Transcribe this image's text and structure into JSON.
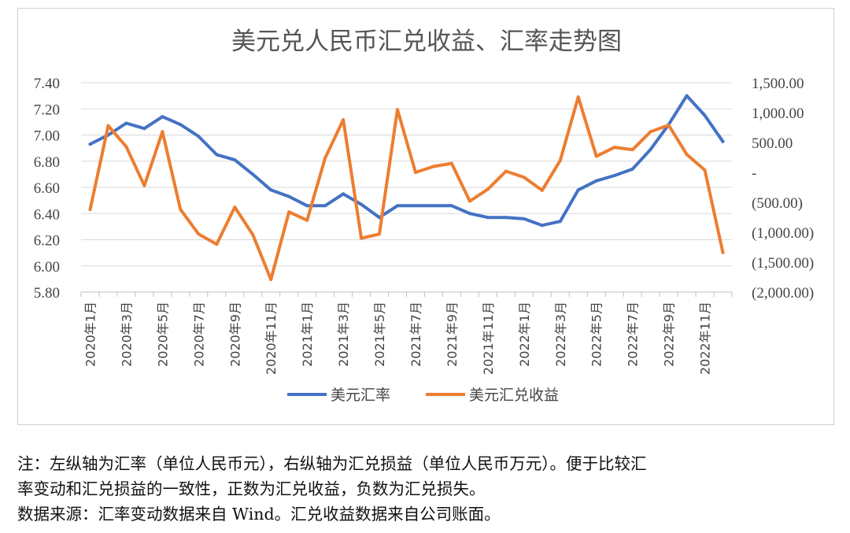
{
  "chart_data": {
    "type": "line",
    "title": "美元兑人民币汇兑收益、汇率走势图",
    "categories": [
      "2020年1月",
      "2020年2月",
      "2020年3月",
      "2020年4月",
      "2020年5月",
      "2020年6月",
      "2020年7月",
      "2020年8月",
      "2020年9月",
      "2020年10月",
      "2020年11月",
      "2020年12月",
      "2021年1月",
      "2021年2月",
      "2021年3月",
      "2021年4月",
      "2021年5月",
      "2021年6月",
      "2021年7月",
      "2021年8月",
      "2021年9月",
      "2021年10月",
      "2021年11月",
      "2021年12月",
      "2022年1月",
      "2022年2月",
      "2022年3月",
      "2022年4月",
      "2022年5月",
      "2022年6月",
      "2022年7月",
      "2022年8月",
      "2022年9月",
      "2022年10月",
      "2022年11月",
      "2022年12月"
    ],
    "x_tick_labels": [
      "2020年1月",
      "",
      "2020年3月",
      "",
      "2020年5月",
      "",
      "2020年7月",
      "",
      "2020年9月",
      "",
      "2020年11月",
      "",
      "2021年1月",
      "",
      "2021年3月",
      "",
      "2021年5月",
      "",
      "2021年7月",
      "",
      "2021年9月",
      "",
      "2021年11月",
      "",
      "2022年1月",
      "",
      "2022年3月",
      "",
      "2022年5月",
      "",
      "2022年7月",
      "",
      "2022年9月",
      "",
      "2022年11月",
      ""
    ],
    "y_left": {
      "min": 5.8,
      "max": 7.4,
      "ticks": [
        "7.40",
        "7.20",
        "7.00",
        "6.80",
        "6.60",
        "6.40",
        "6.20",
        "6.00",
        "5.80"
      ]
    },
    "y_right": {
      "min": -2000,
      "max": 1500,
      "ticks": [
        "1,500.00",
        "1,000.00",
        "500.00",
        "-",
        "(500.00)",
        "(1,000.00)",
        "(1,500.00)",
        "(2,000.00)"
      ]
    },
    "series": [
      {
        "name": "美元汇率",
        "axis": "left",
        "color": "#4472c4",
        "values": [
          6.93,
          7.0,
          7.09,
          7.05,
          7.14,
          7.08,
          6.99,
          6.85,
          6.81,
          6.7,
          6.58,
          6.53,
          6.46,
          6.46,
          6.55,
          6.47,
          6.37,
          6.46,
          6.46,
          6.46,
          6.46,
          6.4,
          6.37,
          6.37,
          6.36,
          6.31,
          6.34,
          6.58,
          6.65,
          6.69,
          6.74,
          6.89,
          7.08,
          7.3,
          7.15,
          6.95
        ]
      },
      {
        "name": "美元汇兑收益",
        "axis": "right",
        "color": "#ed7d31",
        "values": [
          -620,
          780,
          430,
          -220,
          680,
          -620,
          -1030,
          -1200,
          -580,
          -1040,
          -1790,
          -660,
          -800,
          240,
          880,
          -1100,
          -1030,
          1050,
          0,
          100,
          150,
          -480,
          -280,
          20,
          -80,
          -300,
          200,
          1260,
          270,
          420,
          380,
          680,
          790,
          300,
          40,
          -1340
        ]
      }
    ],
    "legend": "bottom",
    "grid": "horizontal"
  },
  "notes": {
    "line1": "注：左纵轴为汇率（单位人民币元），右纵轴为汇兑损益（单位人民币万元）。便于比较汇",
    "line2": "率变动和汇兑损益的一致性，正数为汇兑收益，负数为汇兑损失。",
    "line3": "数据来源：汇率变动数据来自 Wind。汇兑收益数据来自公司账面。"
  }
}
